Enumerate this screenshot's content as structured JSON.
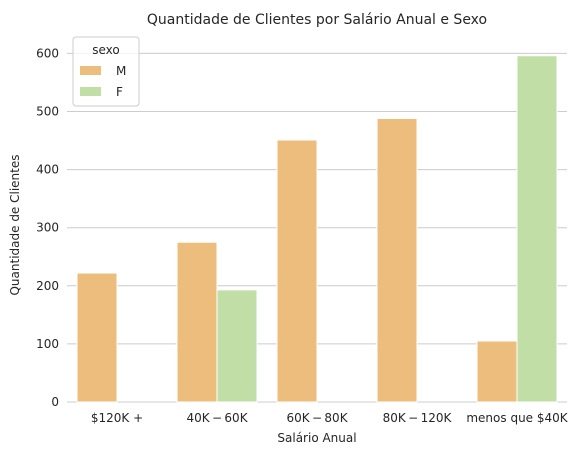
{
  "chart_data": {
    "type": "bar",
    "title": "Quantidade de Clientes por Salário Anual e Sexo",
    "xlabel": "Salário Anual",
    "ylabel": "Quantidade de Clientes",
    "categories": [
      "$120K +",
      "$40K - $60K",
      "$60K - $80K",
      "$80K - $120K",
      "menos que $40K"
    ],
    "category_display": [
      "$120K +",
      "40K − 60K",
      "60K − 80K",
      "80K − 120K",
      "menos que $40K"
    ],
    "series": [
      {
        "name": "M",
        "color": "#EDBD7D",
        "values": [
          222,
          275,
          451,
          488,
          105
        ]
      },
      {
        "name": "F",
        "color": "#C0DEA5",
        "values": [
          0,
          193,
          0,
          0,
          596
        ]
      }
    ],
    "ylim": [
      0,
      630
    ],
    "yticks": [
      0,
      100,
      200,
      300,
      400,
      500,
      600
    ],
    "grid": "horizontal",
    "legend": {
      "title": "sexo",
      "placement": "top-left"
    }
  }
}
